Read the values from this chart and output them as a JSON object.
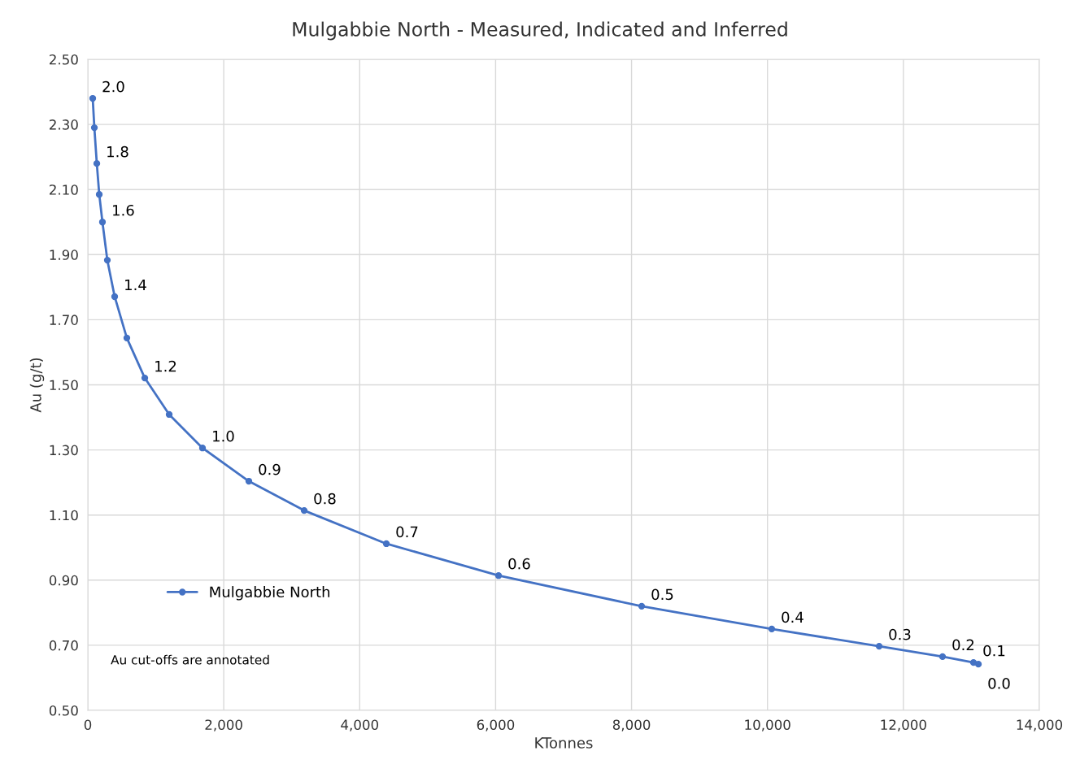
{
  "chart_data": {
    "type": "line",
    "title": "Mulgabbie North - Measured, Indicated and Inferred",
    "xlabel": "KTonnes",
    "ylabel": "Au (g/t)",
    "x": [
      72,
      96,
      132,
      168,
      215,
      287,
      395,
      574,
      838,
      1197,
      1687,
      2369,
      3183,
      4392,
      6043,
      8149,
      10063,
      11643,
      12576,
      13031,
      13103
    ],
    "series": [
      {
        "name": "Mulgabbie North",
        "color": "#4472c4",
        "values": [
          2.38,
          2.29,
          2.18,
          2.085,
          2.0,
          1.883,
          1.771,
          1.644,
          1.521,
          1.409,
          1.306,
          1.204,
          1.114,
          1.012,
          0.914,
          0.82,
          0.75,
          0.697,
          0.665,
          0.647,
          0.642
        ]
      }
    ],
    "xlim": [
      0,
      14000
    ],
    "xticks": [
      0,
      {
        "value": 2000,
        "label": "2,000"
      },
      {
        "value": 4000,
        "label": "4,000"
      },
      {
        "value": 6000,
        "label": "6,000"
      },
      {
        "value": 8000,
        "label": "8,000"
      },
      {
        "value": 10000,
        "label": "10,000"
      },
      {
        "value": 12000,
        "label": "12,000"
      },
      {
        "value": 14000,
        "label": "14,000"
      }
    ],
    "ylim": [
      0.5,
      2.5
    ],
    "yticks": [
      {
        "value": 0.5,
        "label": "0.50"
      },
      {
        "value": 0.7,
        "label": "0.70"
      },
      {
        "value": 0.9,
        "label": "0.90"
      },
      {
        "value": 1.1,
        "label": "1.10"
      },
      {
        "value": 1.3,
        "label": "1.30"
      },
      {
        "value": 1.5,
        "label": "1.50"
      },
      {
        "value": 1.7,
        "label": "1.70"
      },
      {
        "value": 1.9,
        "label": "1.90"
      },
      {
        "value": 2.1,
        "label": "2.10"
      },
      {
        "value": 2.3,
        "label": "2.30"
      },
      {
        "value": 2.5,
        "label": "2.50"
      }
    ],
    "annotations": [
      "Au cut-offs are annotated",
      {
        "text": "2.0",
        "x": 72,
        "y": 2.38
      },
      {
        "text": "1.8",
        "x": 132,
        "y": 2.18
      },
      {
        "text": "1.6",
        "x": 215,
        "y": 2.0
      },
      {
        "text": "1.4",
        "x": 395,
        "y": 1.771
      },
      {
        "text": "1.2",
        "x": 838,
        "y": 1.521
      },
      {
        "text": "1.0",
        "x": 1687,
        "y": 1.306
      },
      {
        "text": "0.9",
        "x": 2369,
        "y": 1.204
      },
      {
        "text": "0.8",
        "x": 3183,
        "y": 1.114
      },
      {
        "text": "0.7",
        "x": 4392,
        "y": 1.012
      },
      {
        "text": "0.6",
        "x": 6043,
        "y": 0.914
      },
      {
        "text": "0.5",
        "x": 8149,
        "y": 0.82
      },
      {
        "text": "0.4",
        "x": 10063,
        "y": 0.75
      },
      {
        "text": "0.3",
        "x": 11643,
        "y": 0.697
      },
      {
        "text": "0.2",
        "x": 12576,
        "y": 0.665
      },
      {
        "text": "0.1",
        "x": 13031,
        "y": 0.647
      },
      {
        "text": "0.0",
        "x": 13103,
        "y": 0.642
      }
    ],
    "grid": true,
    "legend": "left",
    "marker": "circle",
    "line_style": "solid"
  }
}
